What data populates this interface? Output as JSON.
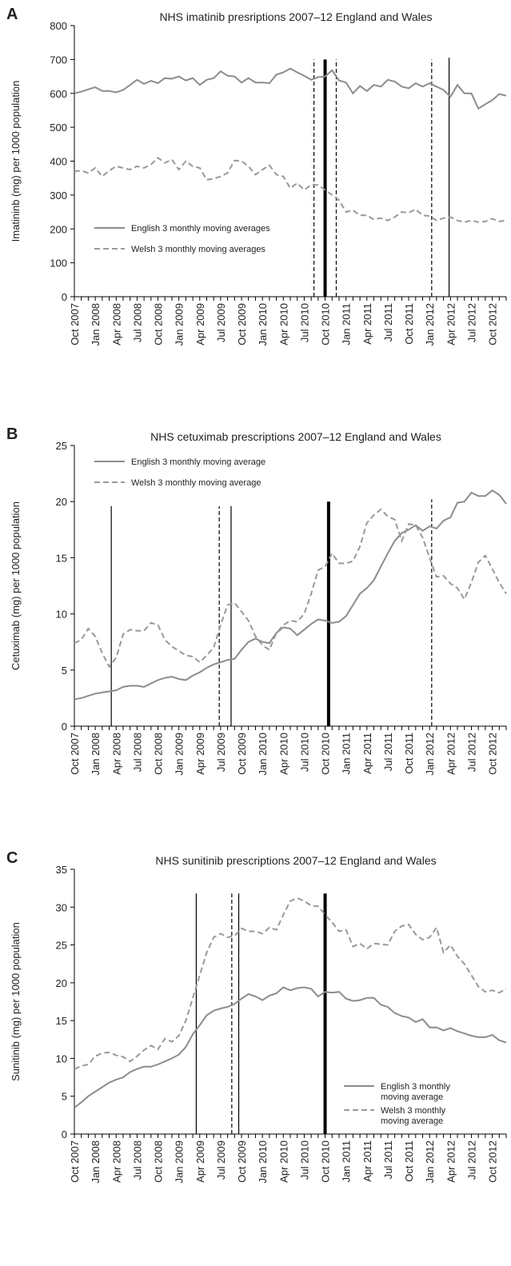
{
  "chart_data": [
    {
      "type": "line",
      "label": "A",
      "title": "NHS imatinib presriptions 2007–12 England and Wales",
      "y_label": "Imatininb (mg) per 1000 population",
      "categories": [
        "Oct 2007",
        null,
        null,
        "Jan 2008",
        null,
        null,
        "Apr 2008",
        null,
        null,
        "Jul 2008",
        null,
        null,
        "Oct 2008",
        null,
        null,
        "Jan 2009",
        null,
        null,
        "Apr 2009",
        null,
        null,
        "Jul 2009",
        null,
        null,
        "Oct 2009",
        null,
        null,
        "Jan 2010",
        null,
        null,
        "Apr 2010",
        null,
        null,
        "Jul 2010",
        null,
        null,
        "Oct 2010",
        null,
        null,
        "Jan 2011",
        null,
        null,
        "Apr 2011",
        null,
        null,
        "Jul 2011",
        null,
        null,
        "Oct 2011",
        null,
        null,
        "Jan 2012",
        null,
        null,
        "Apr 2012",
        null,
        null,
        "Jul 2012",
        null,
        null,
        "Oct 2012",
        null,
        null
      ],
      "ylim": [
        0,
        800
      ],
      "yticks": [
        0,
        100,
        200,
        300,
        400,
        500,
        600,
        700,
        800
      ],
      "legend": "lower left",
      "series": [
        {
          "name": "English 3 monthly moving averages",
          "color": "#8c8c8c",
          "style": "solid",
          "values": [
            600,
            605,
            612,
            618,
            607,
            607,
            603,
            610,
            625,
            640,
            628,
            637,
            630,
            645,
            643,
            650,
            638,
            645,
            625,
            640,
            645,
            665,
            652,
            650,
            632,
            645,
            632,
            632,
            630,
            655,
            662,
            673,
            662,
            652,
            640,
            648,
            650,
            668,
            638,
            632,
            600,
            622,
            607,
            625,
            620,
            640,
            635,
            620,
            615,
            630,
            620,
            630,
            620,
            610,
            590,
            625,
            600,
            600,
            555,
            568,
            580,
            598,
            593
          ]
        },
        {
          "name": "Welsh 3 monthly moving averages",
          "color": "#999999",
          "style": "dashed",
          "values": [
            370,
            372,
            365,
            380,
            355,
            372,
            385,
            380,
            375,
            385,
            380,
            390,
            410,
            395,
            405,
            375,
            400,
            385,
            380,
            345,
            348,
            355,
            365,
            402,
            400,
            385,
            360,
            375,
            388,
            360,
            355,
            320,
            335,
            315,
            330,
            330,
            315,
            300,
            285,
            250,
            255,
            240,
            240,
            228,
            232,
            225,
            235,
            250,
            248,
            258,
            240,
            238,
            225,
            232,
            235,
            225,
            220,
            225,
            220,
            222,
            230,
            222,
            225
          ]
        }
      ],
      "vlines": [
        {
          "x": 34.4,
          "top": 700,
          "style": "dashed",
          "weight": "thin"
        },
        {
          "x": 36,
          "top": 700,
          "style": "solid",
          "weight": "thick"
        },
        {
          "x": 37.6,
          "top": 700,
          "style": "dashed",
          "weight": "thin"
        },
        {
          "x": 51.3,
          "top": 700,
          "style": "dashed",
          "weight": "thin"
        },
        {
          "x": 53.8,
          "top": 705,
          "style": "solid",
          "weight": "thin"
        }
      ]
    },
    {
      "type": "line",
      "label": "B",
      "title": "NHS cetuximab prescriptions 2007–12 England and Wales",
      "y_label": "Cetuximab (mg) per 1000 population",
      "categories": [
        "Oct 2007",
        null,
        null,
        "Jan 2008",
        null,
        null,
        "Apr 2008",
        null,
        null,
        "Jul 2008",
        null,
        null,
        "Oct 2008",
        null,
        null,
        "Jan 2009",
        null,
        null,
        "Apr 2009",
        null,
        null,
        "Jul 2009",
        null,
        null,
        "Oct 2009",
        null,
        null,
        "Jan 2010",
        null,
        null,
        "Apr 2010",
        null,
        null,
        "Jul 2010",
        null,
        null,
        "Oct 2010",
        null,
        null,
        "Jan 2011",
        null,
        null,
        "Apr 2011",
        null,
        null,
        "Jul 2011",
        null,
        null,
        "Oct 2011",
        null,
        null,
        "Jan 2012",
        null,
        null,
        "Apr 2012",
        null,
        null,
        "Jul 2012",
        null,
        null,
        "Oct 2012",
        null,
        null
      ],
      "ylim": [
        0,
        25
      ],
      "yticks": [
        0,
        5,
        10,
        15,
        20,
        25
      ],
      "legend": "upper left",
      "series": [
        {
          "name": "English 3 monthly moving average",
          "color": "#8c8c8c",
          "style": "solid",
          "values": [
            2.4,
            2.5,
            2.7,
            2.9,
            3.0,
            3.1,
            3.2,
            3.5,
            3.6,
            3.6,
            3.5,
            3.8,
            4.1,
            4.3,
            4.4,
            4.2,
            4.1,
            4.5,
            4.8,
            5.2,
            5.5,
            5.7,
            5.9,
            6.0,
            6.8,
            7.5,
            7.8,
            7.5,
            7.4,
            8.3,
            8.8,
            8.7,
            8.1,
            8.6,
            9.1,
            9.5,
            9.4,
            9.2,
            9.3,
            9.8,
            10.8,
            11.8,
            12.3,
            13.0,
            14.2,
            15.4,
            16.5,
            17.2,
            17.5,
            17.9,
            17.4,
            17.8,
            17.6,
            18.3,
            18.6,
            19.9,
            20.0,
            20.8,
            20.5,
            20.5,
            21.0,
            20.6,
            19.8
          ]
        },
        {
          "name": "Welsh 3 monthly moving average",
          "color": "#999999",
          "style": "dashed",
          "values": [
            7.4,
            7.7,
            8.7,
            8.0,
            6.5,
            5.3,
            6.1,
            8.2,
            8.6,
            8.5,
            8.5,
            9.2,
            9.0,
            7.7,
            7.1,
            6.7,
            6.3,
            6.2,
            5.7,
            6.3,
            7.0,
            9.0,
            10.8,
            11.0,
            10.2,
            9.4,
            8.0,
            7.2,
            6.8,
            8.3,
            9.0,
            9.4,
            9.3,
            10.0,
            11.8,
            13.9,
            14.2,
            15.4,
            14.5,
            14.5,
            14.7,
            16.0,
            18.1,
            18.8,
            19.3,
            18.7,
            18.4,
            16.5,
            18.0,
            17.9,
            16.8,
            15.0,
            13.3,
            13.4,
            12.7,
            12.3,
            11.3,
            12.8,
            14.6,
            15.2,
            14.0,
            12.8,
            11.8
          ]
        }
      ],
      "vlines": [
        {
          "x": 5.3,
          "top": 19.6,
          "style": "solid",
          "weight": "thin"
        },
        {
          "x": 20.8,
          "top": 19.6,
          "style": "dashed",
          "weight": "thin"
        },
        {
          "x": 22.5,
          "top": 19.6,
          "style": "solid",
          "weight": "thin"
        },
        {
          "x": 36.5,
          "top": 20,
          "style": "solid",
          "weight": "thick"
        },
        {
          "x": 51.3,
          "top": 20.2,
          "style": "dashed",
          "weight": "thin"
        }
      ]
    },
    {
      "type": "line",
      "label": "C",
      "title": "NHS sunitinib prescriptions 2007–12 England and Wales",
      "y_label": "Sunitinib (mg) per 1000 population",
      "categories": [
        "Oct 2007",
        null,
        null,
        "Jan 2008",
        null,
        null,
        "Apr 2008",
        null,
        null,
        "Jul 2008",
        null,
        null,
        "Oct 2008",
        null,
        null,
        "Jan 2009",
        null,
        null,
        "Apr 2009",
        null,
        null,
        "Jul 2009",
        null,
        null,
        "Oct 2009",
        null,
        null,
        "Jan 2010",
        null,
        null,
        "Apr 2010",
        null,
        null,
        "Jul 2010",
        null,
        null,
        "Oct 2010",
        null,
        null,
        "Jan 2011",
        null,
        null,
        "Apr 2011",
        null,
        null,
        "Jul 2011",
        null,
        null,
        "Oct 2011",
        null,
        null,
        "Jan 2012",
        null,
        null,
        "Apr 2012",
        null,
        null,
        "Jul 2012",
        null,
        null,
        "Oct 2012",
        null,
        null
      ],
      "ylim": [
        0,
        35
      ],
      "yticks": [
        0,
        5,
        10,
        15,
        20,
        25,
        30,
        35
      ],
      "legend": "lower right",
      "series": [
        {
          "name": "English 3 monthly moving average",
          "color": "#8c8c8c",
          "style": "solid",
          "values": [
            3.5,
            4.2,
            5.0,
            5.6,
            6.2,
            6.8,
            7.2,
            7.5,
            8.2,
            8.6,
            8.9,
            8.9,
            9.2,
            9.6,
            10.0,
            10.5,
            11.5,
            13.2,
            14.4,
            15.7,
            16.3,
            16.6,
            16.8,
            17.2,
            17.9,
            18.5,
            18.2,
            17.7,
            18.3,
            18.6,
            19.4,
            19.0,
            19.3,
            19.4,
            19.2,
            18.2,
            18.8,
            18.7,
            18.8,
            17.9,
            17.6,
            17.7,
            18.0,
            18.0,
            17.1,
            16.8,
            16.0,
            15.6,
            15.4,
            14.8,
            15.2,
            14.1,
            14.1,
            13.7,
            14.0,
            13.6,
            13.3,
            13.0,
            12.8,
            12.8,
            13.1,
            12.4,
            12.1
          ]
        },
        {
          "name": "Welsh  3 monthly moving average",
          "color": "#999999",
          "style": "dashed",
          "values": [
            8.6,
            9.0,
            9.2,
            10.3,
            10.7,
            10.8,
            10.4,
            10.2,
            9.6,
            10.3,
            11.1,
            11.7,
            11.2,
            12.6,
            12.2,
            13.0,
            15.0,
            18.0,
            21.0,
            24.0,
            26.0,
            26.5,
            26.0,
            26.2,
            27.2,
            26.8,
            26.8,
            26.5,
            27.3,
            27.0,
            29.0,
            30.8,
            31.2,
            30.8,
            30.2,
            30.1,
            29.0,
            28.0,
            26.8,
            27.0,
            24.8,
            25.2,
            24.5,
            25.2,
            25.1,
            25.0,
            26.8,
            27.5,
            27.7,
            26.4,
            25.7,
            26.0,
            27.3,
            24.0,
            25.0,
            23.5,
            22.5,
            21.0,
            19.5,
            18.8,
            19.0,
            18.7,
            19.2
          ]
        }
      ],
      "vlines": [
        {
          "x": 17.5,
          "top": 31.8,
          "style": "solid",
          "weight": "thin"
        },
        {
          "x": 22.6,
          "top": 31.8,
          "style": "dashed",
          "weight": "thin"
        },
        {
          "x": 23.6,
          "top": 31.8,
          "style": "solid",
          "weight": "thin"
        },
        {
          "x": 36,
          "top": 31.8,
          "style": "solid",
          "weight": "thick"
        }
      ]
    }
  ]
}
